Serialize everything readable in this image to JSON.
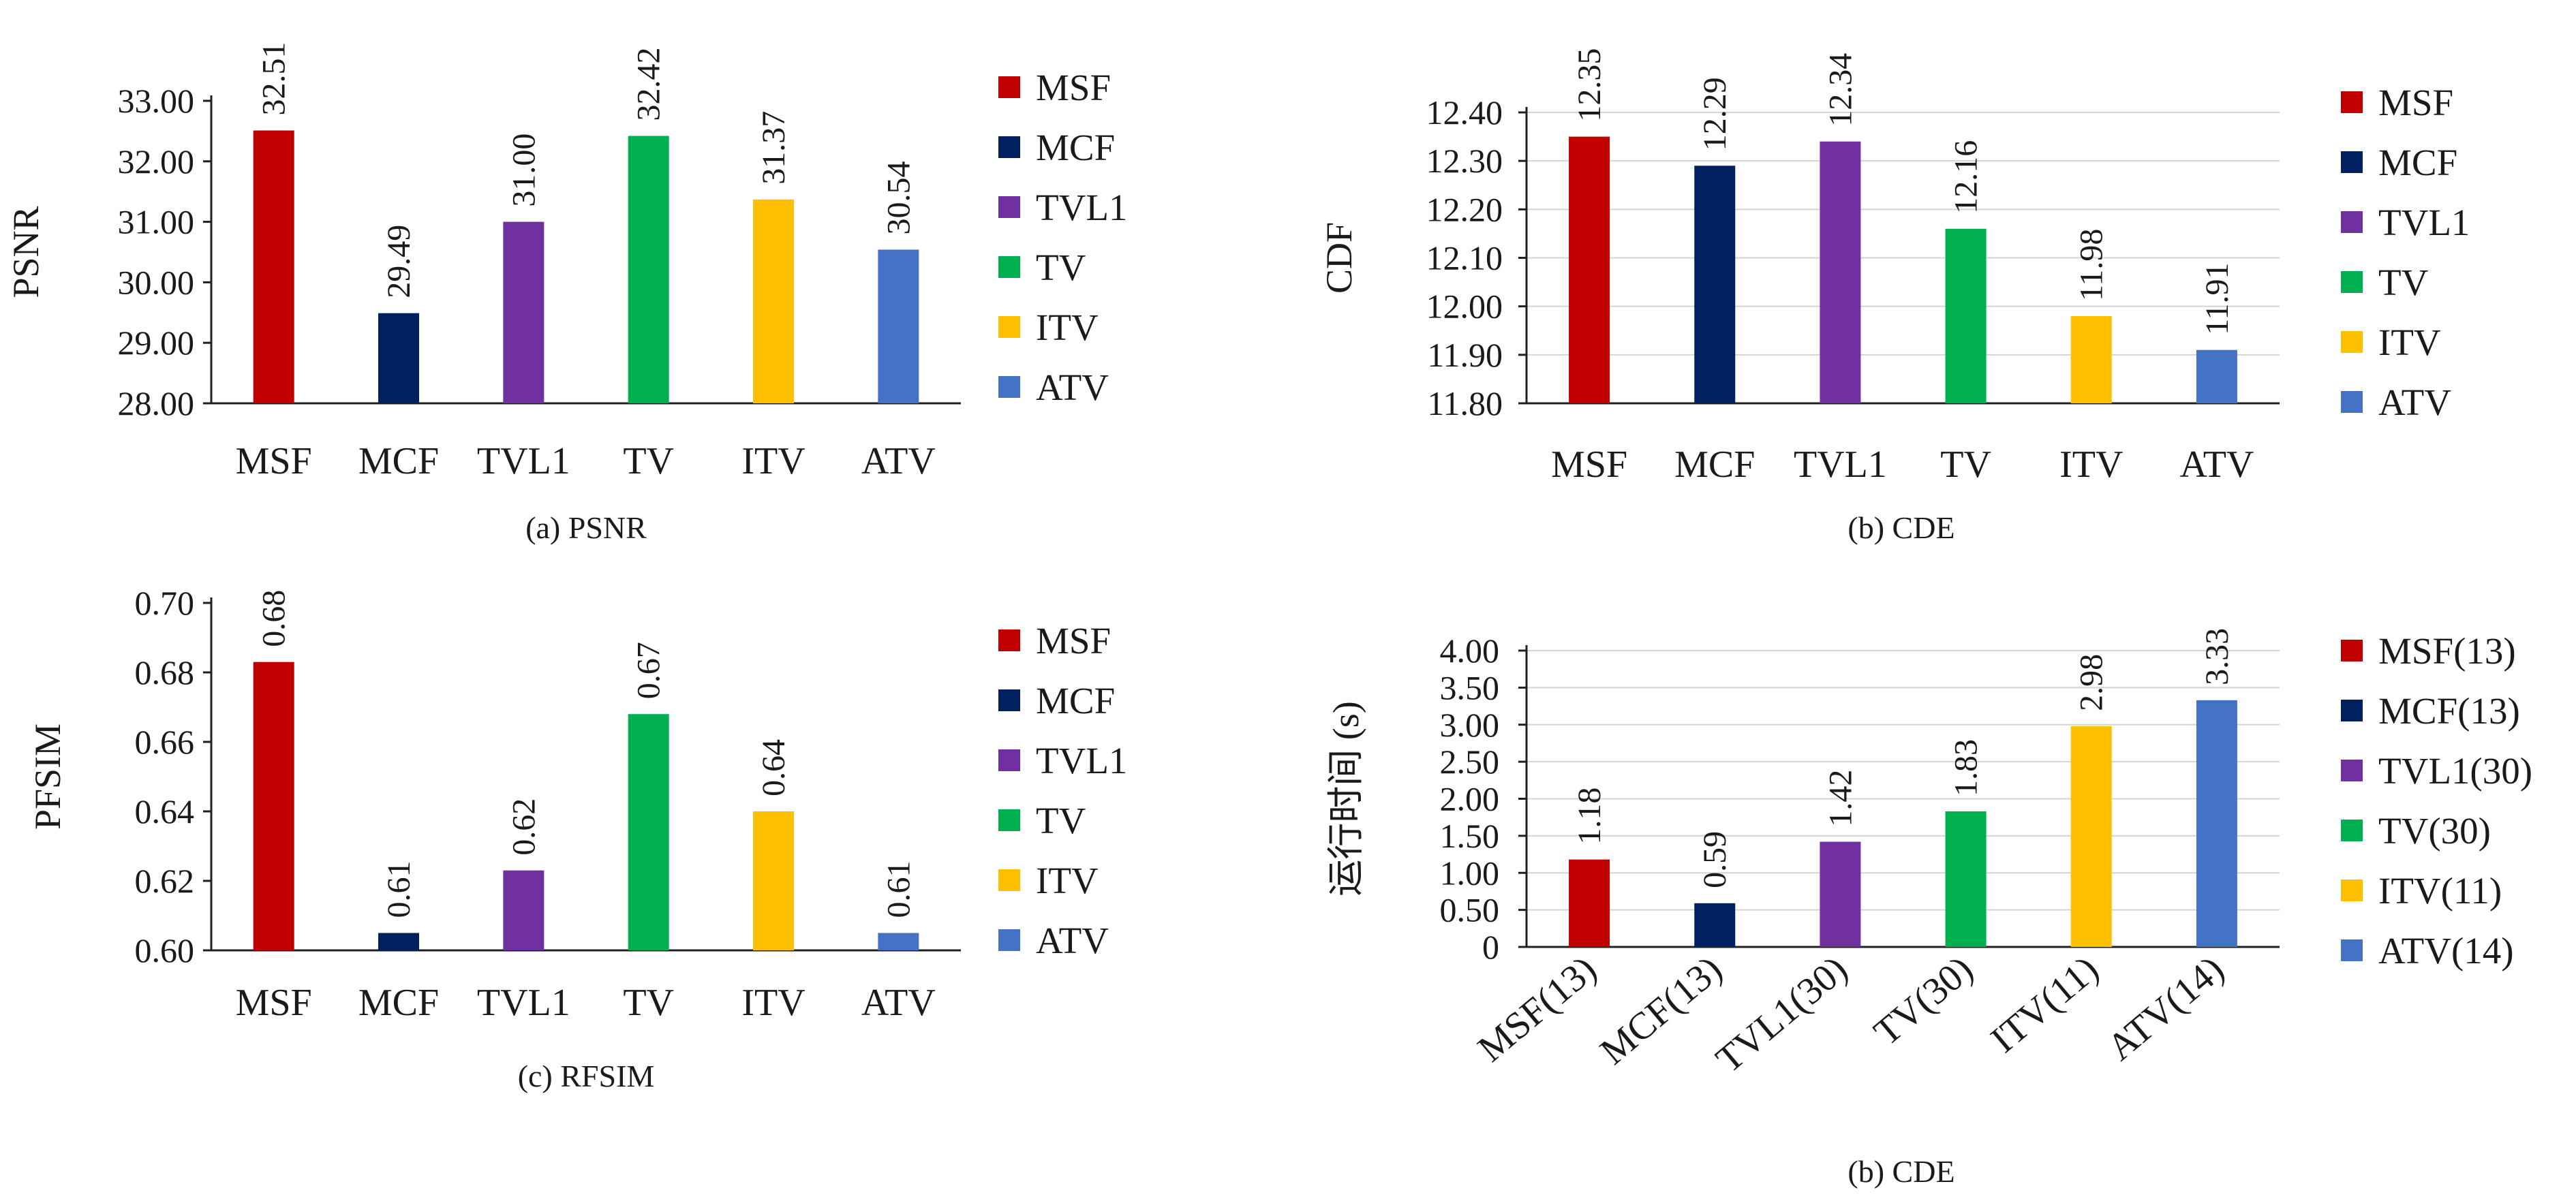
{
  "colors": {
    "MSF": "#c00000",
    "MCF": "#002060",
    "TVL1": "#7030a0",
    "TV": "#00b050",
    "ITV": "#ffc000",
    "ATV": "#4472c4"
  },
  "chart_data": [
    {
      "type": "bar",
      "caption": "(a) PSNR",
      "ylabel": "PSNR",
      "categories": [
        "MSF",
        "MCF",
        "TVL1",
        "TV",
        "ITV",
        "ATV"
      ],
      "values": [
        32.51,
        29.49,
        31.0,
        32.42,
        31.37,
        30.54
      ],
      "value_labels": [
        "32.51",
        "29.49",
        "31.00",
        "32.42",
        "31.37",
        "30.54"
      ],
      "ylim": [
        28.0,
        33.0
      ],
      "yticks": [
        28.0,
        29.0,
        30.0,
        31.0,
        32.0,
        33.0
      ],
      "ytick_labels": [
        "28.00",
        "29.00",
        "30.00",
        "31.00",
        "32.00",
        "33.00"
      ],
      "legend": [
        "MSF",
        "MCF",
        "TVL1",
        "TV",
        "ITV",
        "ATV"
      ],
      "legend_position": "right",
      "grid": false
    },
    {
      "type": "bar",
      "caption": "(b) CDE",
      "ylabel": "CDF",
      "categories": [
        "MSF",
        "MCF",
        "TVL1",
        "TV",
        "ITV",
        "ATV"
      ],
      "values": [
        12.35,
        12.29,
        12.34,
        12.16,
        11.98,
        11.91
      ],
      "value_labels": [
        "12.35",
        "12.29",
        "12.34",
        "12.16",
        "11.98",
        "11.91"
      ],
      "ylim": [
        11.8,
        12.4
      ],
      "yticks": [
        11.8,
        11.9,
        12.0,
        12.1,
        12.2,
        12.3,
        12.4
      ],
      "ytick_labels": [
        "11.80",
        "11.90",
        "12.00",
        "12.10",
        "12.20",
        "12.30",
        "12.40"
      ],
      "legend": [
        "MSF",
        "MCF",
        "TVL1",
        "TV",
        "ITV",
        "ATV"
      ],
      "legend_position": "right",
      "grid": true
    },
    {
      "type": "bar",
      "caption": "(c) RFSIM",
      "ylabel": "PFSIM",
      "categories": [
        "MSF",
        "MCF",
        "TVL1",
        "TV",
        "ITV",
        "ATV"
      ],
      "values": [
        0.683,
        0.605,
        0.623,
        0.668,
        0.64,
        0.605
      ],
      "value_labels": [
        "0.68",
        "0.61",
        "0.62",
        "0.67",
        "0.64",
        "0.61"
      ],
      "ylim": [
        0.6,
        0.7
      ],
      "yticks": [
        0.6,
        0.62,
        0.64,
        0.66,
        0.68,
        0.7
      ],
      "ytick_labels": [
        "0.60",
        "0.62",
        "0.64",
        "0.66",
        "0.68",
        "0.70"
      ],
      "legend": [
        "MSF",
        "MCF",
        "TVL1",
        "TV",
        "ITV",
        "ATV"
      ],
      "legend_position": "right",
      "grid": false
    },
    {
      "type": "bar",
      "caption": "(b) CDE",
      "ylabel": "运行时间 (s)",
      "categories": [
        "MSF(13)",
        "MCF(13)",
        "TVL1(30)",
        "TV(30)",
        "ITV(11)",
        "ATV(14)"
      ],
      "values": [
        1.18,
        0.59,
        1.42,
        1.83,
        2.98,
        3.33
      ],
      "value_labels": [
        "1.18",
        "0.59",
        "1.42",
        "1.83",
        "2.98",
        "3.33"
      ],
      "ylim": [
        0,
        4.0
      ],
      "yticks": [
        0,
        0.5,
        1.0,
        1.5,
        2.0,
        2.5,
        3.0,
        3.5,
        4.0
      ],
      "ytick_labels": [
        "0",
        "0.50",
        "1.00",
        "1.50",
        "2.00",
        "2.50",
        "3.00",
        "3.50",
        "4.00"
      ],
      "legend": [
        "MSF(13)",
        "MCF(13)",
        "TVL1(30)",
        "TV(30)",
        "ITV(11)",
        "ATV(14)"
      ],
      "legend_position": "right",
      "grid": true
    }
  ]
}
